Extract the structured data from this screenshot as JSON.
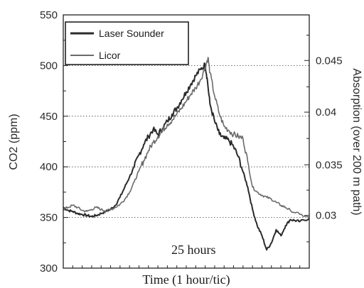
{
  "chart_data": {
    "type": "line",
    "xlabel": "Time (1 hour/tic)",
    "ylabel": "CO2 (ppm)",
    "y2label": "Absorption (over 200 m path)",
    "annotation": "25 hours",
    "xlim": [
      0,
      26
    ],
    "ylim": [
      300,
      550
    ],
    "y_ticks": [
      300,
      350,
      400,
      450,
      500,
      550
    ],
    "y2_ticks": [
      "0.03",
      "0.035",
      "0.04",
      "0.045"
    ],
    "y2_tick_values_ppm": [
      352,
      402,
      454,
      505
    ],
    "grid": "horizontal dotted at 350, 400, 450, 500",
    "legend_position": "top-left",
    "series": [
      {
        "name": "Laser Sounder",
        "color": "#2b2b2b",
        "points": [
          [
            0,
            360
          ],
          [
            0.5,
            357
          ],
          [
            1,
            356
          ],
          [
            1.5,
            354
          ],
          [
            2,
            353
          ],
          [
            2.5,
            352
          ],
          [
            3,
            351
          ],
          [
            3.5,
            352
          ],
          [
            4,
            354
          ],
          [
            4.5,
            356
          ],
          [
            5,
            358
          ],
          [
            5.5,
            362
          ],
          [
            6,
            370
          ],
          [
            6.5,
            380
          ],
          [
            7,
            390
          ],
          [
            7.5,
            400
          ],
          [
            8,
            412
          ],
          [
            8.5,
            422
          ],
          [
            9,
            430
          ],
          [
            9.5,
            437
          ],
          [
            10,
            432
          ],
          [
            10.5,
            438
          ],
          [
            11,
            445
          ],
          [
            11.5,
            452
          ],
          [
            12,
            458
          ],
          [
            12.5,
            466
          ],
          [
            13,
            474
          ],
          [
            13.5,
            482
          ],
          [
            14,
            490
          ],
          [
            14.5,
            496
          ],
          [
            15,
            501
          ],
          [
            15.2,
            488
          ],
          [
            15.5,
            462
          ],
          [
            16,
            445
          ],
          [
            16.5,
            432
          ],
          [
            17,
            428
          ],
          [
            17.5,
            426
          ],
          [
            18,
            420
          ],
          [
            18.5,
            410
          ],
          [
            19,
            395
          ],
          [
            19.5,
            380
          ],
          [
            20,
            358
          ],
          [
            20.5,
            342
          ],
          [
            21,
            332
          ],
          [
            21.5,
            318
          ],
          [
            22,
            325
          ],
          [
            22.5,
            338
          ],
          [
            23,
            332
          ],
          [
            23.5,
            342
          ],
          [
            24,
            348
          ],
          [
            24.5,
            347
          ],
          [
            25,
            346
          ],
          [
            26,
            349
          ]
        ]
      },
      {
        "name": "Licor",
        "color": "#6b6b6b",
        "points": [
          [
            0,
            358
          ],
          [
            0.5,
            360
          ],
          [
            1,
            362
          ],
          [
            1.5,
            360
          ],
          [
            2,
            357
          ],
          [
            2.5,
            356
          ],
          [
            3,
            358
          ],
          [
            3.5,
            360
          ],
          [
            4,
            358
          ],
          [
            4.5,
            356
          ],
          [
            5,
            358
          ],
          [
            5.5,
            360
          ],
          [
            6,
            363
          ],
          [
            6.5,
            368
          ],
          [
            7,
            375
          ],
          [
            7.5,
            385
          ],
          [
            8,
            396
          ],
          [
            8.5,
            406
          ],
          [
            9,
            416
          ],
          [
            9.5,
            424
          ],
          [
            10,
            430
          ],
          [
            10.5,
            436
          ],
          [
            11,
            442
          ],
          [
            11.5,
            446
          ],
          [
            12,
            452
          ],
          [
            12.5,
            458
          ],
          [
            13,
            465
          ],
          [
            13.5,
            472
          ],
          [
            14,
            478
          ],
          [
            14.5,
            486
          ],
          [
            15,
            498
          ],
          [
            15.3,
            508
          ],
          [
            15.5,
            493
          ],
          [
            16,
            470
          ],
          [
            16.5,
            452
          ],
          [
            17,
            440
          ],
          [
            17.5,
            436
          ],
          [
            18,
            432
          ],
          [
            18.5,
            430
          ],
          [
            19,
            428
          ],
          [
            19.5,
            405
          ],
          [
            20,
            380
          ],
          [
            20.5,
            375
          ],
          [
            21,
            372
          ],
          [
            21.5,
            370
          ],
          [
            22,
            368
          ],
          [
            22.5,
            365
          ],
          [
            23,
            362
          ],
          [
            23.5,
            360
          ],
          [
            24,
            357
          ],
          [
            25,
            353
          ],
          [
            26,
            350
          ]
        ]
      }
    ]
  }
}
